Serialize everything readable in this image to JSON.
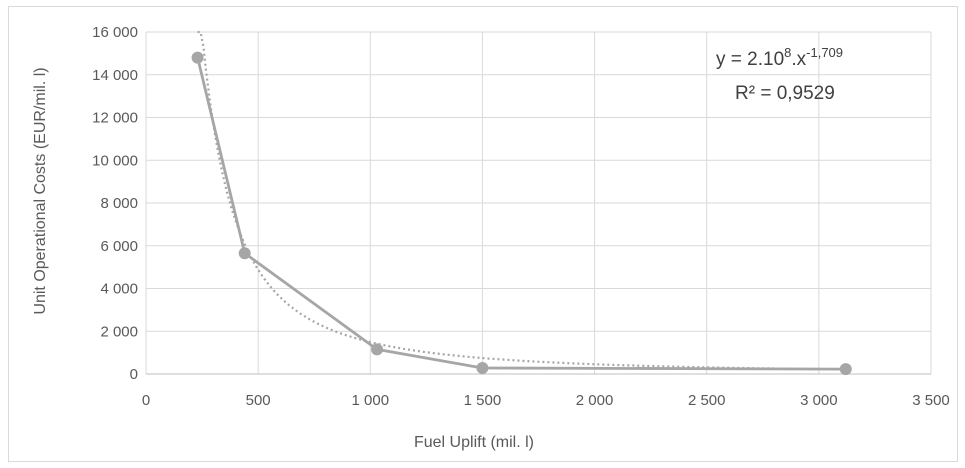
{
  "chart_data": {
    "type": "scatter",
    "xlabel": "Fuel Uplift (mil. l)",
    "ylabel": "Unit Operational Costs (EUR/mil. l)",
    "xlim": [
      0,
      3500
    ],
    "ylim": [
      0,
      16000
    ],
    "x_ticks": [
      0,
      500,
      1000,
      1500,
      2000,
      2500,
      3000,
      3500
    ],
    "x_tick_labels": [
      "0",
      "500",
      "1 000",
      "1 500",
      "2 000",
      "2 500",
      "3 000",
      "3 500"
    ],
    "y_ticks": [
      0,
      2000,
      4000,
      6000,
      8000,
      10000,
      12000,
      14000,
      16000
    ],
    "y_tick_labels": [
      "0",
      "2 000",
      "4 000",
      "6 000",
      "8 000",
      "10 000",
      "12 000",
      "14 000",
      "16 000"
    ],
    "grid": true,
    "series": [
      {
        "style": "line-with-markers",
        "color": "#a6a6a6",
        "x": [
          230,
          440,
          1030,
          1500,
          3120
        ],
        "y": [
          14800,
          5650,
          1150,
          280,
          230
        ]
      }
    ],
    "trendline": {
      "type": "power",
      "style": "dotted",
      "color": "#a6a6a6",
      "coefficient": 200000000,
      "exponent": -1.709,
      "x_range": [
        230,
        3120
      ]
    },
    "annotation": {
      "equation_prefix": "y = 2.10",
      "equation_power": "8",
      "equation_mid": ".x",
      "equation_exponent": "-1,709",
      "r_squared": "R² = 0,9529"
    }
  }
}
